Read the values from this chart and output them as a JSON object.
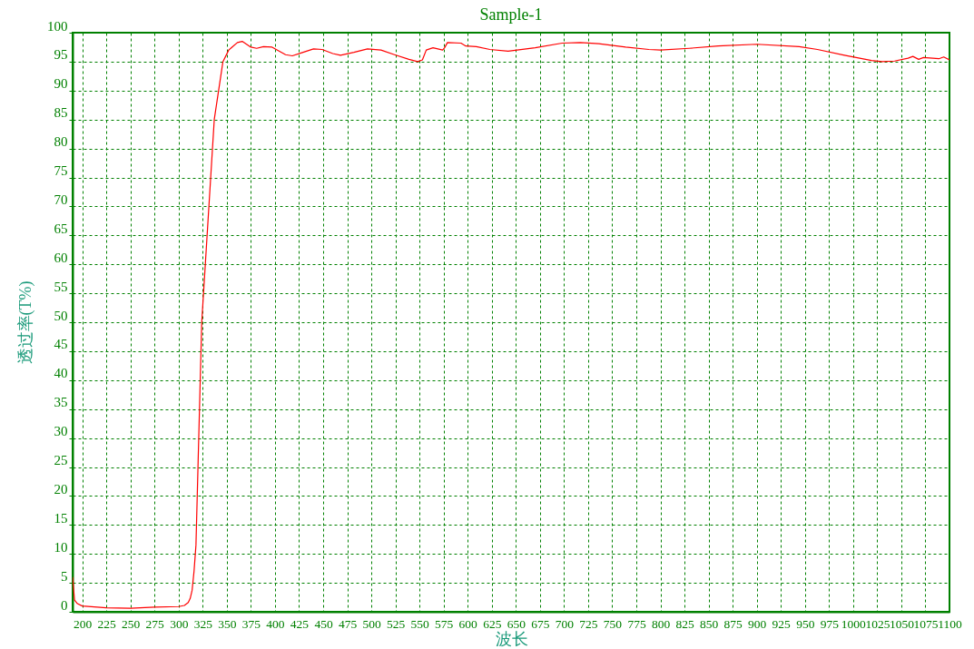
{
  "chart_data": {
    "type": "line",
    "title": "Sample-1",
    "xlabel": "波长",
    "ylabel": "透过率(T%)",
    "xlim": [
      190,
      1100
    ],
    "ylim": [
      0,
      100
    ],
    "xticks": [
      200,
      225,
      250,
      275,
      300,
      325,
      350,
      375,
      400,
      425,
      450,
      475,
      500,
      525,
      550,
      575,
      600,
      625,
      650,
      675,
      700,
      725,
      750,
      775,
      800,
      825,
      850,
      875,
      900,
      925,
      950,
      975,
      1000,
      1025,
      1050,
      1075,
      1100
    ],
    "yticks": [
      0,
      5,
      10,
      15,
      20,
      25,
      30,
      35,
      40,
      45,
      50,
      55,
      60,
      65,
      70,
      75,
      80,
      85,
      90,
      95,
      100
    ],
    "grid": true,
    "line_style": "solid",
    "series": [
      {
        "color": "#ff0000",
        "x": [
          190,
          192,
          195,
          200,
          225,
          250,
          275,
          300,
          306,
          310,
          312,
          314,
          316,
          318,
          324,
          337,
          346,
          352,
          361,
          366,
          375,
          381,
          388,
          397,
          411,
          418,
          427,
          440,
          449,
          460,
          468,
          482,
          496,
          510,
          524,
          539,
          548,
          553,
          557,
          564,
          574,
          576,
          579,
          593,
          598,
          609,
          623,
          642,
          670,
          698,
          717,
          736,
          764,
          788,
          800,
          830,
          860,
          900,
          944,
          963,
          991,
          1019,
          1030,
          1043,
          1057,
          1062,
          1068,
          1073,
          1089,
          1094,
          1100
        ],
        "values": [
          6,
          2,
          1.4,
          1,
          0.7,
          0.6,
          0.8,
          0.9,
          1.1,
          1.6,
          2.3,
          3.7,
          7,
          11.5,
          50,
          85,
          95,
          97,
          98.3,
          98.5,
          97.5,
          97.3,
          97.6,
          97.5,
          96.2,
          96,
          96.5,
          97.2,
          97.1,
          96.4,
          96.1,
          96.6,
          97.2,
          97,
          96.2,
          95.4,
          95,
          95.3,
          97,
          97.4,
          97,
          97.4,
          98.3,
          98.2,
          97.7,
          97.6,
          97.1,
          96.8,
          97.4,
          98.2,
          98.3,
          98.1,
          97.5,
          97.1,
          97,
          97.3,
          97.7,
          98,
          97.6,
          97.1,
          96.1,
          95.2,
          95,
          95.1,
          95.6,
          95.9,
          95.4,
          95.7,
          95.5,
          95.8,
          95.3
        ]
      }
    ]
  }
}
